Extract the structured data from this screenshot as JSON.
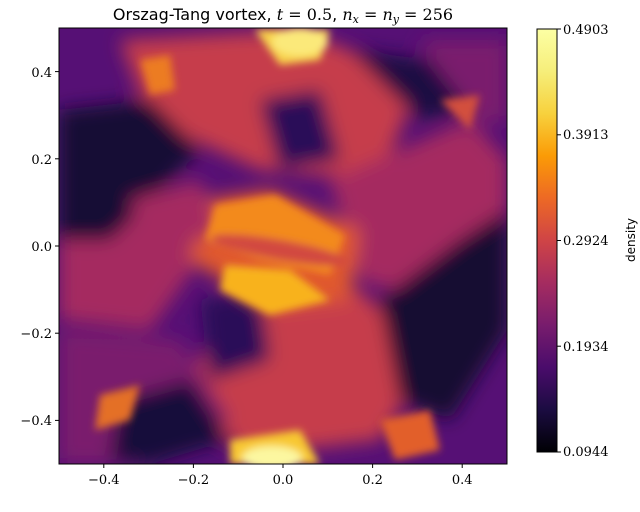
{
  "chart_data": {
    "type": "heatmap",
    "title_prefix": "Orszag-Tang vortex, ",
    "title_math": "t = 0.5, n_x = n_y = 256",
    "title_parts": {
      "t": "t",
      "t_value": "0.5",
      "nx": "n",
      "nx_sub": "x",
      "ny": "n",
      "ny_sub": "y",
      "n_value": "256"
    },
    "xlim": [
      -0.5,
      0.5
    ],
    "ylim": [
      -0.5,
      0.5
    ],
    "x_ticks": [
      -0.4,
      -0.2,
      0.0,
      0.2,
      0.4
    ],
    "x_tick_labels": [
      "−0.4",
      "−0.2",
      "0.0",
      "0.2",
      "0.4"
    ],
    "y_ticks": [
      -0.4,
      -0.2,
      0.0,
      0.2,
      0.4
    ],
    "y_tick_labels": [
      "−0.4",
      "−0.2",
      "0.0",
      "0.2",
      "0.4"
    ],
    "colormap": "inferno",
    "colorbar": {
      "label": "density",
      "min": 0.0944,
      "max": 0.4903,
      "ticks": [
        0.0944,
        0.1934,
        0.2924,
        0.3913,
        0.4903
      ],
      "tick_labels": [
        "0.0944",
        "0.1934",
        "0.2924",
        "0.3913",
        "0.4903"
      ]
    },
    "grid": "off"
  }
}
